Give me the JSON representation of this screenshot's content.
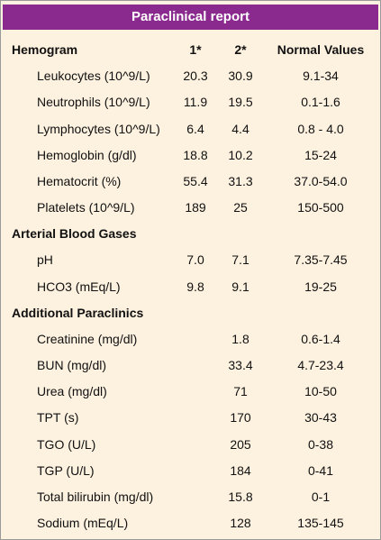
{
  "header": {
    "title": "Paraclinical report"
  },
  "sections": [
    {
      "title": "Hemogram",
      "columns": [
        "1*",
        "2*",
        "Normal Values"
      ],
      "rows": [
        [
          "Leukocytes (10^9/L)",
          "20.3",
          "30.9",
          "9.1-34"
        ],
        [
          "Neutrophils (10^9/L)",
          "11.9",
          "19.5",
          "0.1-1.6"
        ],
        [
          "Lymphocytes (10^9/L)",
          "6.4",
          "4.4",
          "0.8 - 4.0"
        ],
        [
          "Hemoglobin (g/dl)",
          "18.8",
          "10.2",
          "15-24"
        ],
        [
          "Hematocrit (%)",
          "55.4",
          "31.3",
          "37.0-54.0"
        ],
        [
          "Platelets  (10^9/L)",
          "189",
          "25",
          "150-500"
        ]
      ]
    },
    {
      "title": "Arterial Blood Gases",
      "rows": [
        [
          "pH",
          "7.0",
          "7.1",
          "7.35-7.45"
        ],
        [
          "HCO3 (mEq/L)",
          "9.8",
          "9.1",
          "19-25"
        ]
      ]
    },
    {
      "title": "Additional Paraclinics",
      "rows": [
        [
          "Creatinine  (mg/dl)",
          null,
          "1.8",
          "0.6-1.4"
        ],
        [
          "BUN (mg/dl)",
          null,
          "33.4",
          "4.7-23.4"
        ],
        [
          "Urea (mg/dl)",
          null,
          "71",
          "10-50"
        ],
        [
          "TPT (s)",
          null,
          "170",
          "30-43"
        ],
        [
          "TGO (U/L)",
          null,
          "205",
          "0-38"
        ],
        [
          "TGP (U/L)",
          null,
          "184",
          "0-41"
        ],
        [
          "Total bilirubin (mg/dl)",
          null,
          "15.8",
          "0-1"
        ],
        [
          "Sodium (mEq/L)",
          null,
          "128",
          "135-145"
        ]
      ]
    }
  ]
}
